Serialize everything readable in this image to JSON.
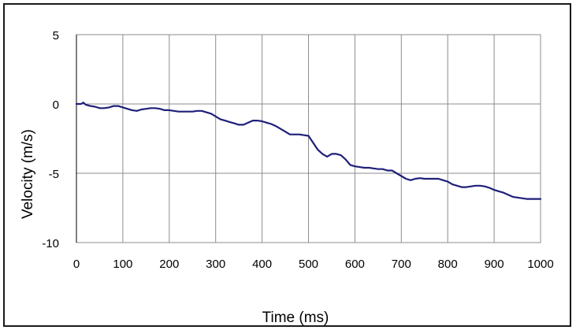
{
  "chart_data": {
    "type": "line",
    "title": "",
    "xlabel": "Time (ms)",
    "ylabel": "Velocity  (m/s)",
    "xlim": [
      0,
      1000
    ],
    "ylim": [
      -10,
      5
    ],
    "xticks": [
      0,
      100,
      200,
      300,
      400,
      500,
      600,
      700,
      800,
      900,
      1000
    ],
    "yticks": [
      5,
      0,
      -5,
      -10
    ],
    "grid": true,
    "legend": "none",
    "colors": {
      "line": "#1f1f7a",
      "grid": "#8c8c8c",
      "axis": "#000000"
    },
    "series": [
      {
        "x": [
          0,
          10,
          15,
          20,
          30,
          40,
          50,
          60,
          70,
          80,
          90,
          100,
          110,
          120,
          130,
          140,
          150,
          160,
          170,
          180,
          190,
          200,
          210,
          220,
          230,
          240,
          250,
          260,
          270,
          280,
          290,
          300,
          310,
          320,
          330,
          340,
          350,
          360,
          370,
          380,
          390,
          400,
          410,
          420,
          430,
          440,
          450,
          460,
          470,
          480,
          490,
          500,
          510,
          520,
          530,
          540,
          550,
          560,
          570,
          580,
          590,
          600,
          610,
          620,
          630,
          640,
          650,
          660,
          670,
          680,
          690,
          700,
          710,
          720,
          730,
          740,
          750,
          760,
          770,
          780,
          790,
          800,
          810,
          820,
          830,
          840,
          850,
          860,
          870,
          880,
          890,
          900,
          910,
          920,
          930,
          940,
          950,
          960,
          970,
          980,
          990,
          1000
        ],
        "values": [
          0.0,
          0.0,
          0.1,
          -0.05,
          -0.15,
          -0.2,
          -0.3,
          -0.3,
          -0.25,
          -0.15,
          -0.15,
          -0.25,
          -0.35,
          -0.45,
          -0.5,
          -0.4,
          -0.35,
          -0.3,
          -0.3,
          -0.35,
          -0.45,
          -0.45,
          -0.5,
          -0.55,
          -0.55,
          -0.55,
          -0.55,
          -0.5,
          -0.5,
          -0.6,
          -0.7,
          -0.9,
          -1.1,
          -1.2,
          -1.3,
          -1.4,
          -1.5,
          -1.5,
          -1.35,
          -1.2,
          -1.2,
          -1.25,
          -1.35,
          -1.45,
          -1.6,
          -1.8,
          -2.0,
          -2.2,
          -2.2,
          -2.2,
          -2.25,
          -2.3,
          -2.8,
          -3.3,
          -3.6,
          -3.8,
          -3.6,
          -3.6,
          -3.7,
          -4.0,
          -4.4,
          -4.5,
          -4.55,
          -4.6,
          -4.6,
          -4.65,
          -4.7,
          -4.7,
          -4.8,
          -4.8,
          -5.0,
          -5.2,
          -5.4,
          -5.5,
          -5.4,
          -5.35,
          -5.4,
          -5.4,
          -5.4,
          -5.4,
          -5.5,
          -5.6,
          -5.8,
          -5.9,
          -6.0,
          -6.0,
          -5.95,
          -5.9,
          -5.9,
          -5.95,
          -6.05,
          -6.2,
          -6.3,
          -6.4,
          -6.55,
          -6.7,
          -6.75,
          -6.8,
          -6.85,
          -6.85,
          -6.85,
          -6.85
        ]
      }
    ]
  }
}
